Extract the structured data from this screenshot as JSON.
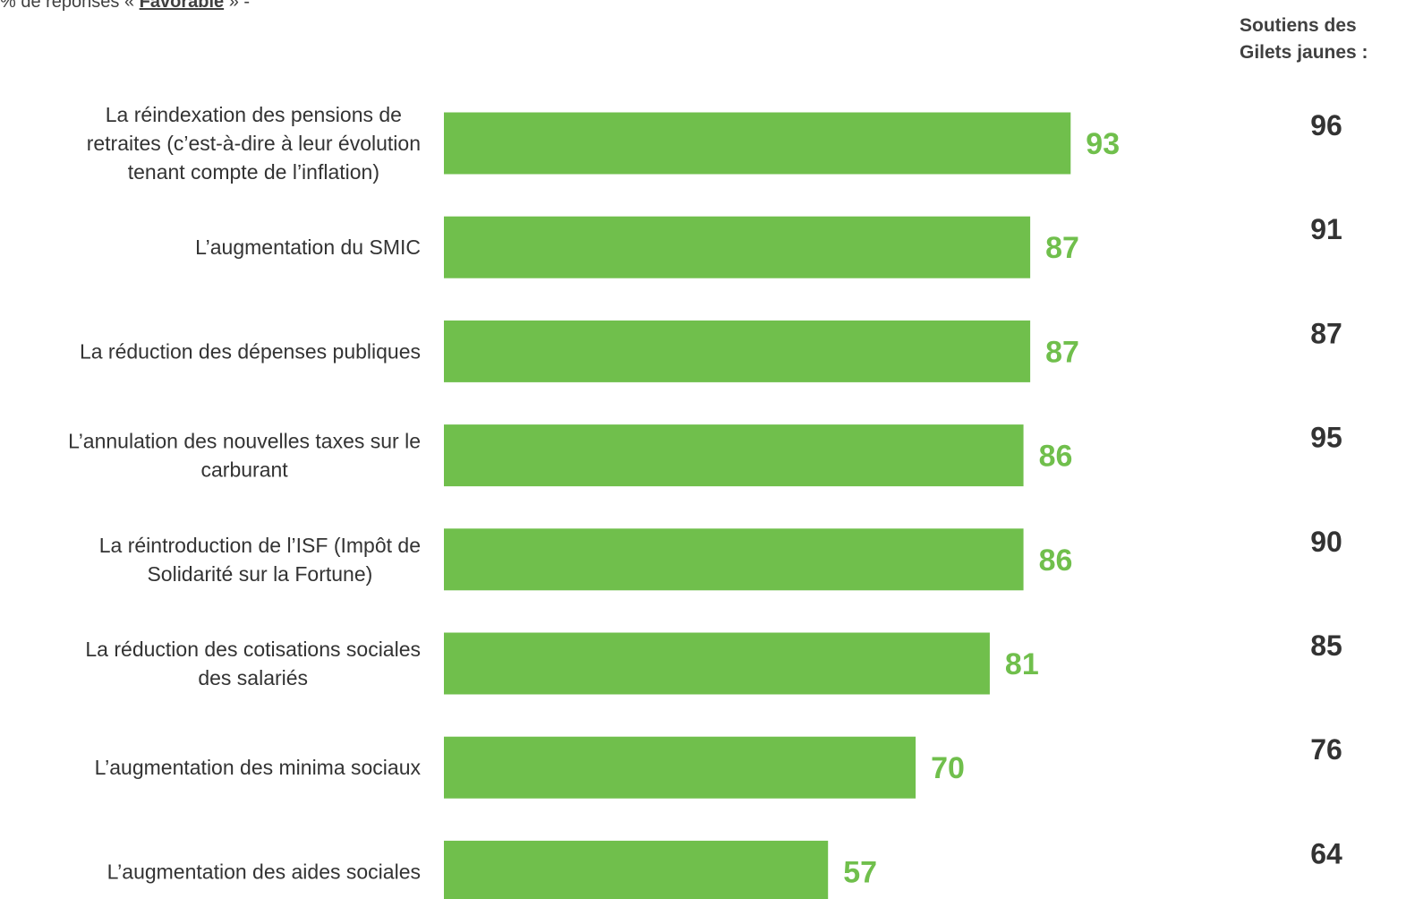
{
  "header": {
    "note_prefix": "% de réponses « ",
    "note_emphasis": "Favorable",
    "note_suffix": " » -"
  },
  "side_header": {
    "line1": "Soutiens des",
    "line2": "Gilets jaunes :"
  },
  "colors": {
    "bar": "#70bf4c",
    "value_label": "#70bf4c",
    "side_value": "#333333"
  },
  "chart_data": {
    "type": "bar",
    "orientation": "horizontal",
    "categories": [
      [
        "La réindexation des pensions de",
        "retraites (c’est-à-dire à leur évolution",
        "tenant compte de l’inflation)"
      ],
      [
        "L’augmentation du SMIC"
      ],
      [
        "La réduction des dépenses publiques"
      ],
      [
        "L’annulation des nouvelles taxes sur le",
        "carburant"
      ],
      [
        "La réintroduction de l’ISF (Impôt de",
        "Solidarité sur la Fortune)"
      ],
      [
        "La réduction des cotisations sociales",
        "des salariés"
      ],
      [
        "L’augmentation des minima sociaux"
      ],
      [
        "L’augmentation des aides sociales"
      ]
    ],
    "values": [
      93,
      87,
      87,
      86,
      86,
      81,
      70,
      57
    ],
    "side_values": [
      96,
      91,
      87,
      95,
      90,
      85,
      76,
      64
    ],
    "xlim": [
      0,
      100
    ],
    "grid": false,
    "legend": "none"
  }
}
